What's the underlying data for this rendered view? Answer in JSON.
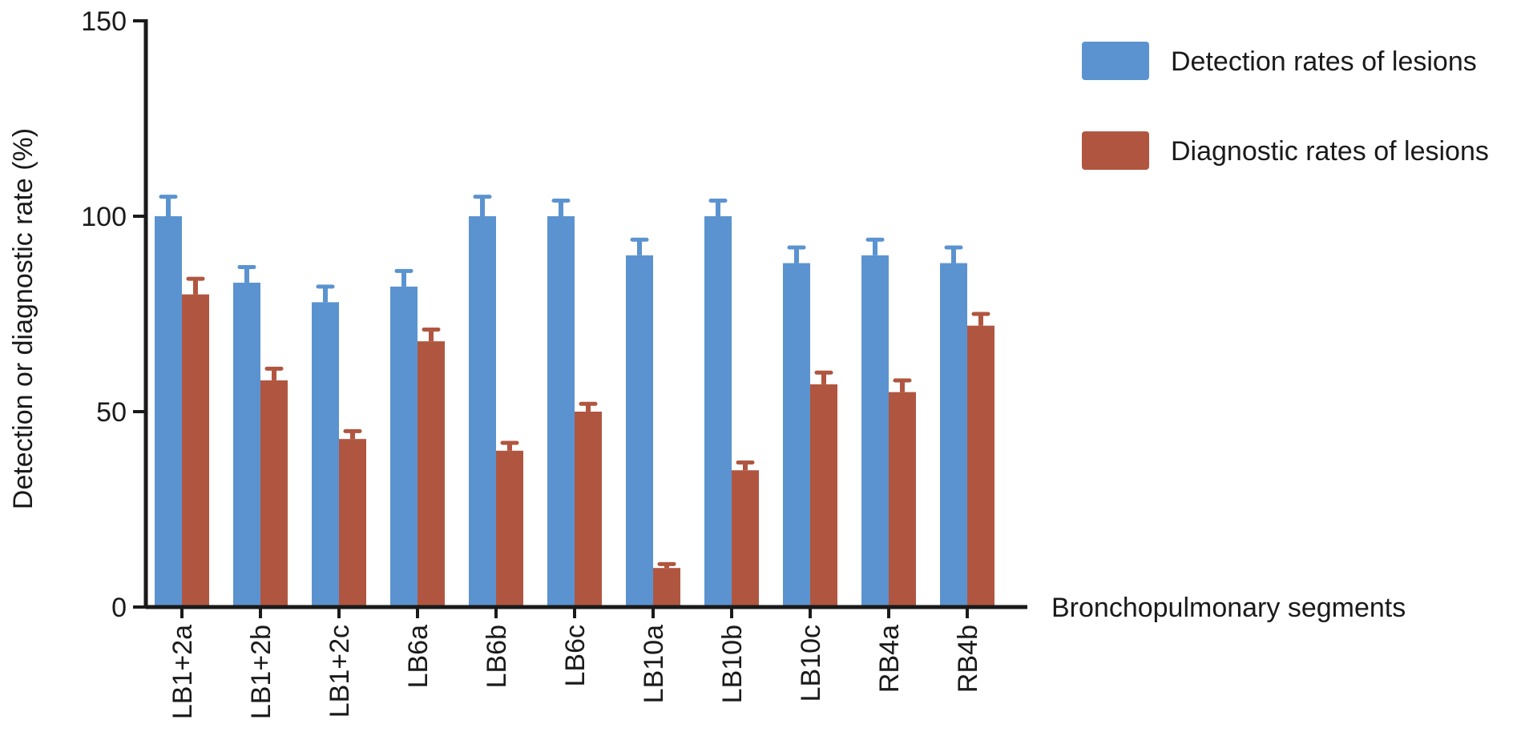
{
  "chart_data": {
    "type": "bar",
    "title": "",
    "xlabel": "Bronchopulmonary segments",
    "ylabel": "Detection or diagnostic rate (%)",
    "ylim": [
      0,
      150
    ],
    "yticks": [
      0,
      50,
      100,
      150
    ],
    "grid": false,
    "legend_position": "top-right",
    "categories": [
      "LB1+2a",
      "LB1+2b",
      "LB1+2c",
      "LB6a",
      "LB6b",
      "LB6c",
      "LB10a",
      "LB10b",
      "LB10c",
      "RB4a",
      "RB4b"
    ],
    "series": [
      {
        "name": "Detection rates of lesions",
        "color": "#5b93d0",
        "values": [
          100,
          83,
          78,
          82,
          100,
          100,
          90,
          100,
          88,
          90,
          88
        ],
        "errors": [
          5,
          4,
          4,
          4,
          5,
          4,
          4,
          4,
          4,
          4,
          4
        ]
      },
      {
        "name": "Diagnostic rates of lesions",
        "color": "#b05640",
        "values": [
          80,
          58,
          43,
          68,
          40,
          50,
          10,
          35,
          57,
          55,
          72
        ],
        "errors": [
          4,
          3,
          2,
          3,
          2,
          2,
          1,
          2,
          3,
          3,
          3
        ]
      }
    ]
  }
}
